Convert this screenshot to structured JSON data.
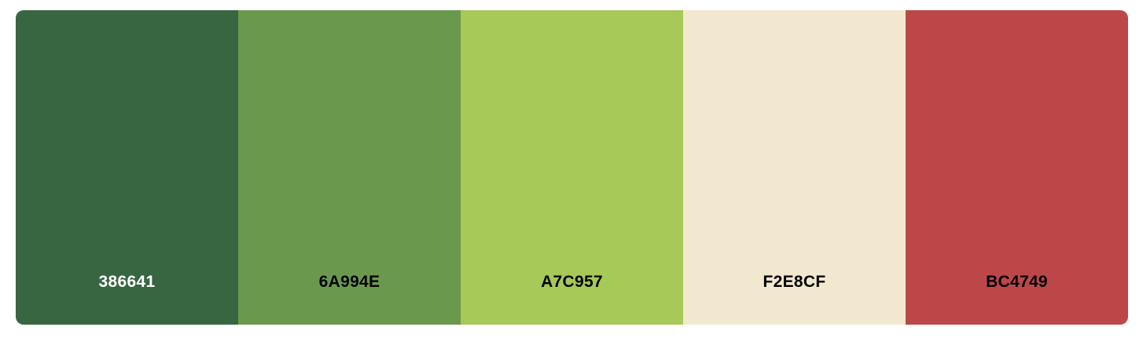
{
  "palette": {
    "swatches": [
      {
        "hex": "#386641",
        "label": "386641",
        "text_color": "#ffffff"
      },
      {
        "hex": "#6A994E",
        "label": "6A994E",
        "text_color": "#000000"
      },
      {
        "hex": "#A7C957",
        "label": "A7C957",
        "text_color": "#000000"
      },
      {
        "hex": "#F2E8CF",
        "label": "F2E8CF",
        "text_color": "#000000"
      },
      {
        "hex": "#BC4749",
        "label": "BC4749",
        "text_color": "#000000"
      }
    ]
  }
}
